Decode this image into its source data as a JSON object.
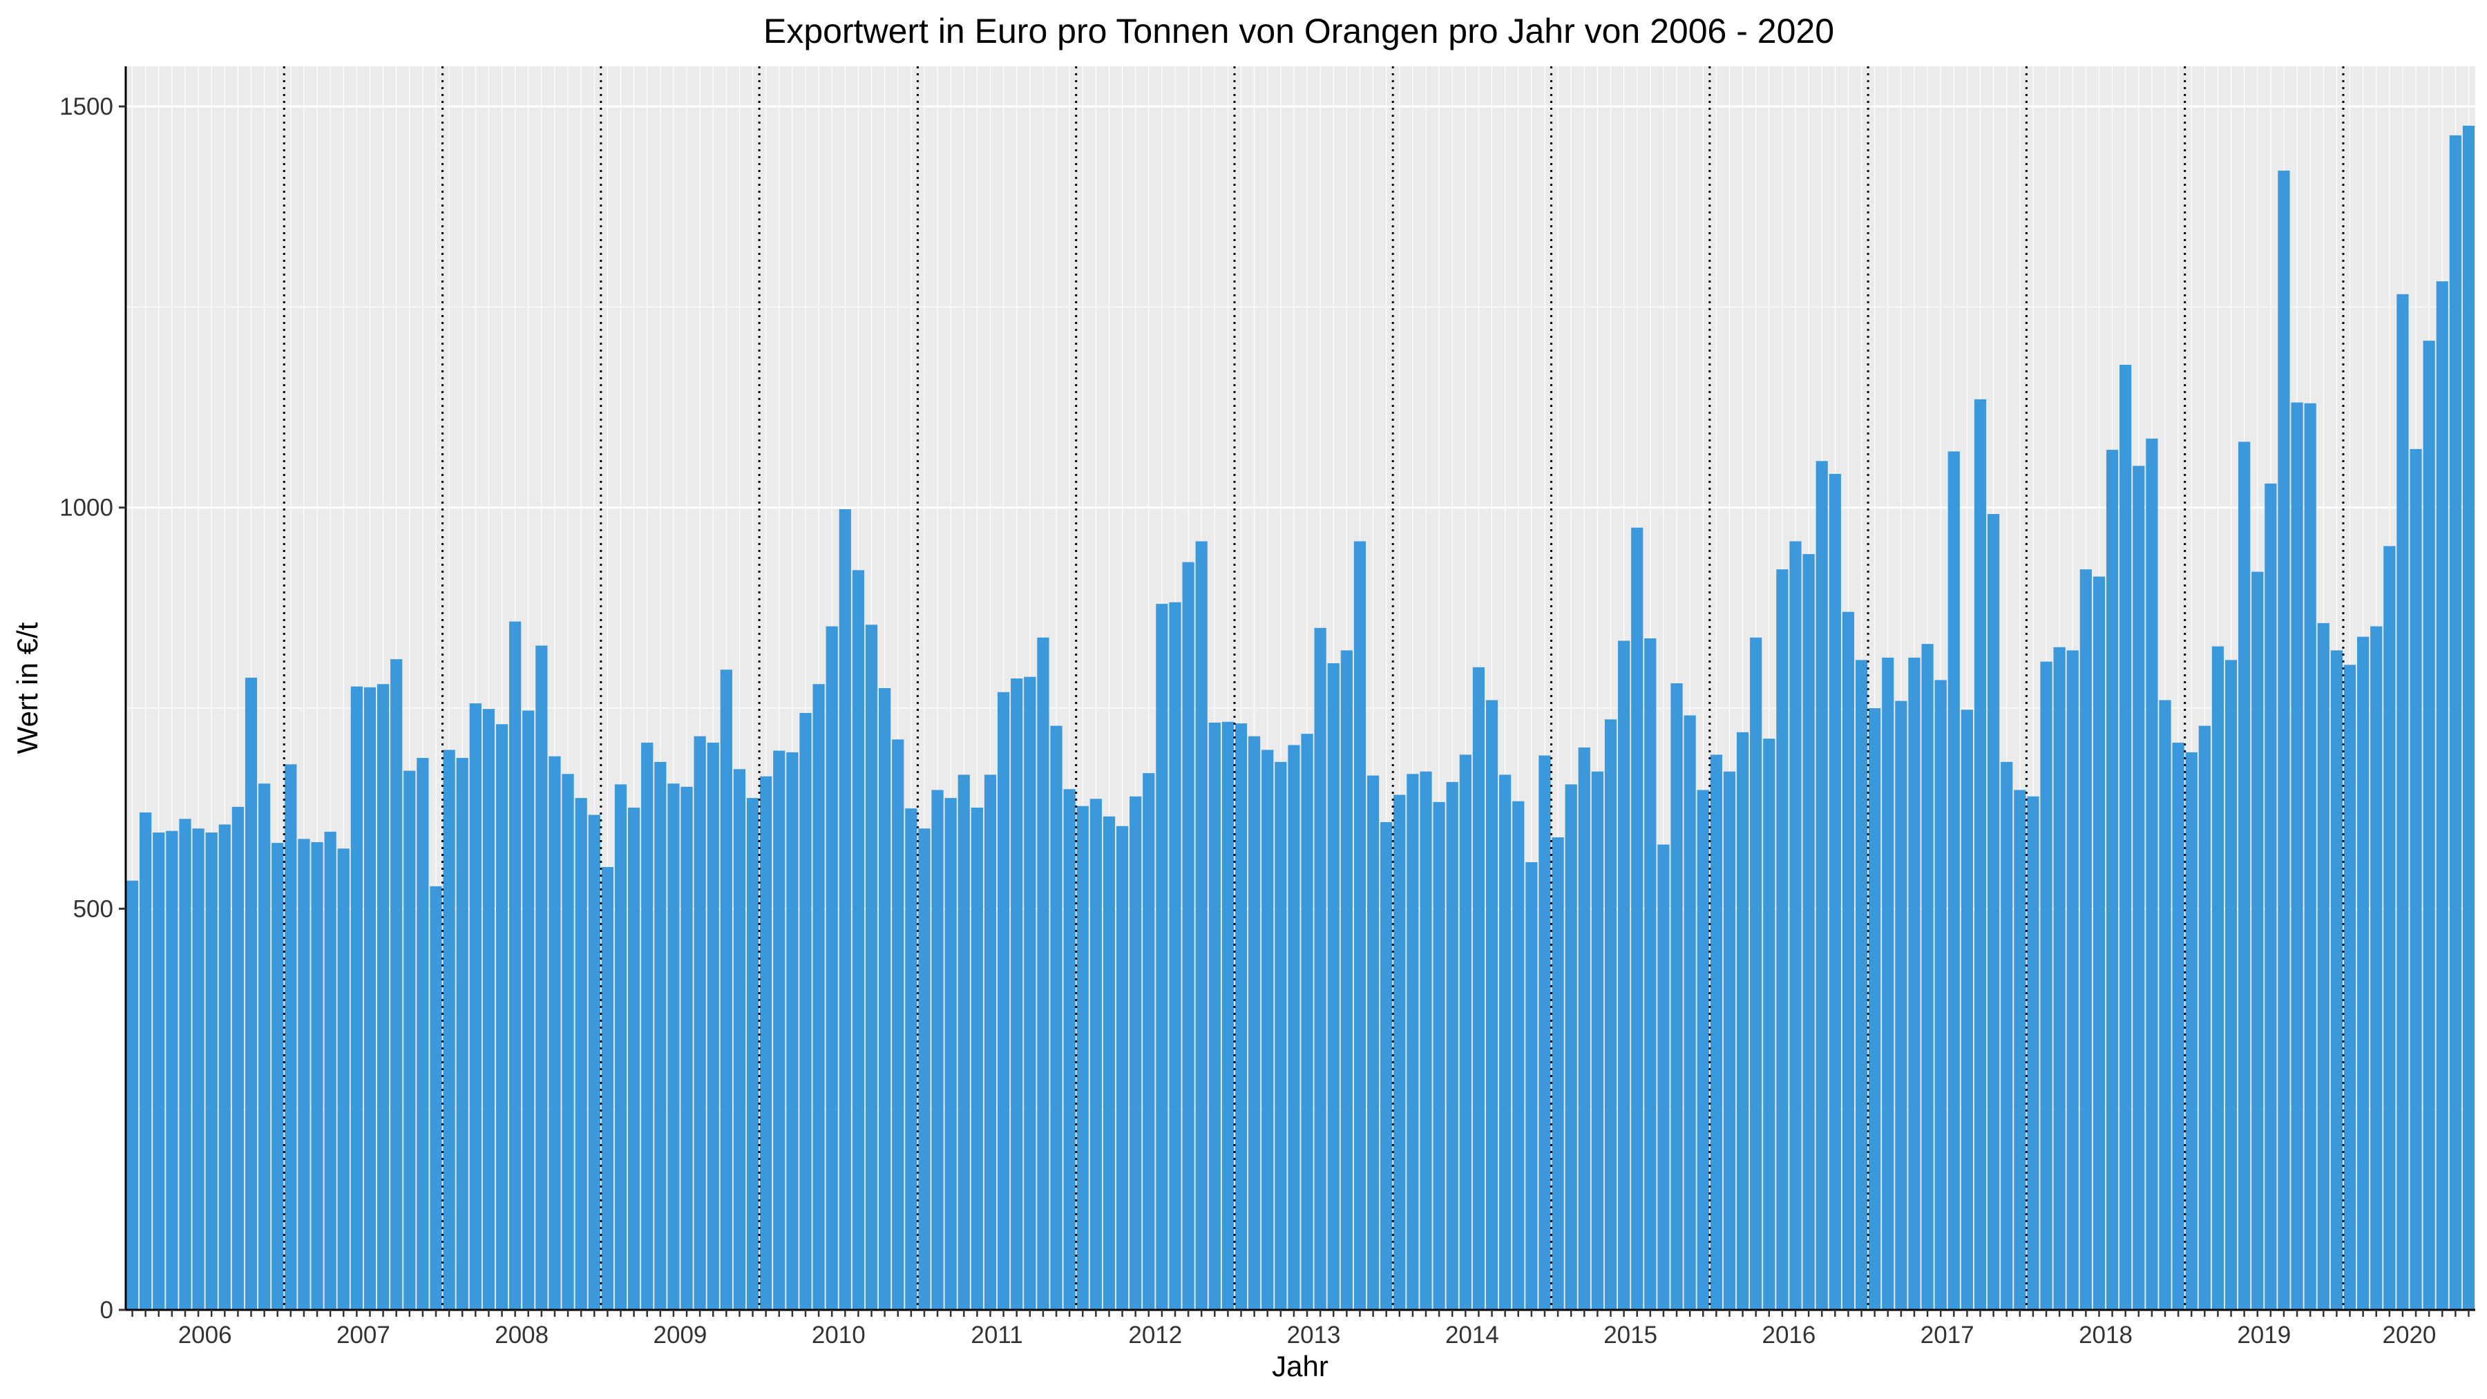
{
  "chart_data": {
    "type": "bar",
    "title": "Exportwert in Euro pro Tonnen von Orangen pro Jahr von 2006 - 2020",
    "xlabel": "Jahr",
    "ylabel": "Wert in €/t",
    "ylim": [
      0,
      1550
    ],
    "y_ticks": [
      0,
      500,
      1000,
      1500
    ],
    "grid": true,
    "legend": "none",
    "bar_color": "#3A98DB",
    "panel_color": "#EBEBEB",
    "year_separator_style": "dotted",
    "years": [
      "2006",
      "2007",
      "2008",
      "2009",
      "2010",
      "2011",
      "2012",
      "2013",
      "2014",
      "2015",
      "2016",
      "2017",
      "2018",
      "2019",
      "2020"
    ],
    "months_per_year": 12,
    "values": [
      535,
      620,
      595,
      597,
      612,
      600,
      595,
      605,
      627,
      788,
      656,
      582,
      680,
      587,
      583,
      596,
      575,
      777,
      776,
      780,
      811,
      672,
      688,
      528,
      698,
      688,
      756,
      749,
      730,
      858,
      747,
      828,
      690,
      668,
      638,
      617,
      552,
      655,
      626,
      707,
      683,
      656,
      652,
      715,
      707,
      798,
      674,
      638,
      665,
      697,
      695,
      744,
      780,
      852,
      998,
      922,
      854,
      775,
      711,
      625,
      600,
      648,
      638,
      667,
      626,
      667,
      770,
      787,
      789,
      838,
      728,
      649,
      628,
      637,
      615,
      603,
      640,
      669,
      880,
      882,
      932,
      958,
      732,
      733,
      731,
      715,
      698,
      683,
      704,
      718,
      850,
      806,
      822,
      958,
      666,
      608,
      642,
      668,
      671,
      633,
      658,
      692,
      801,
      760,
      667,
      634,
      558,
      691,
      589,
      655,
      701,
      671,
      736,
      834,
      975,
      837,
      580,
      781,
      741,
      648,
      692,
      671,
      720,
      838,
      712,
      923,
      958,
      942,
      1058,
      1042,
      870,
      810,
      750,
      813,
      759,
      813,
      830,
      785,
      1070,
      748,
      1135,
      992,
      683,
      648,
      640,
      808,
      826,
      822,
      923,
      914,
      1072,
      1178,
      1052,
      1086,
      760,
      707,
      695,
      728,
      827,
      810,
      1082,
      920,
      1030,
      1420,
      1131,
      1130,
      856,
      822,
      804,
      839,
      852,
      952,
      1266,
      1073,
      1208,
      1282,
      1464,
      1476
    ]
  }
}
